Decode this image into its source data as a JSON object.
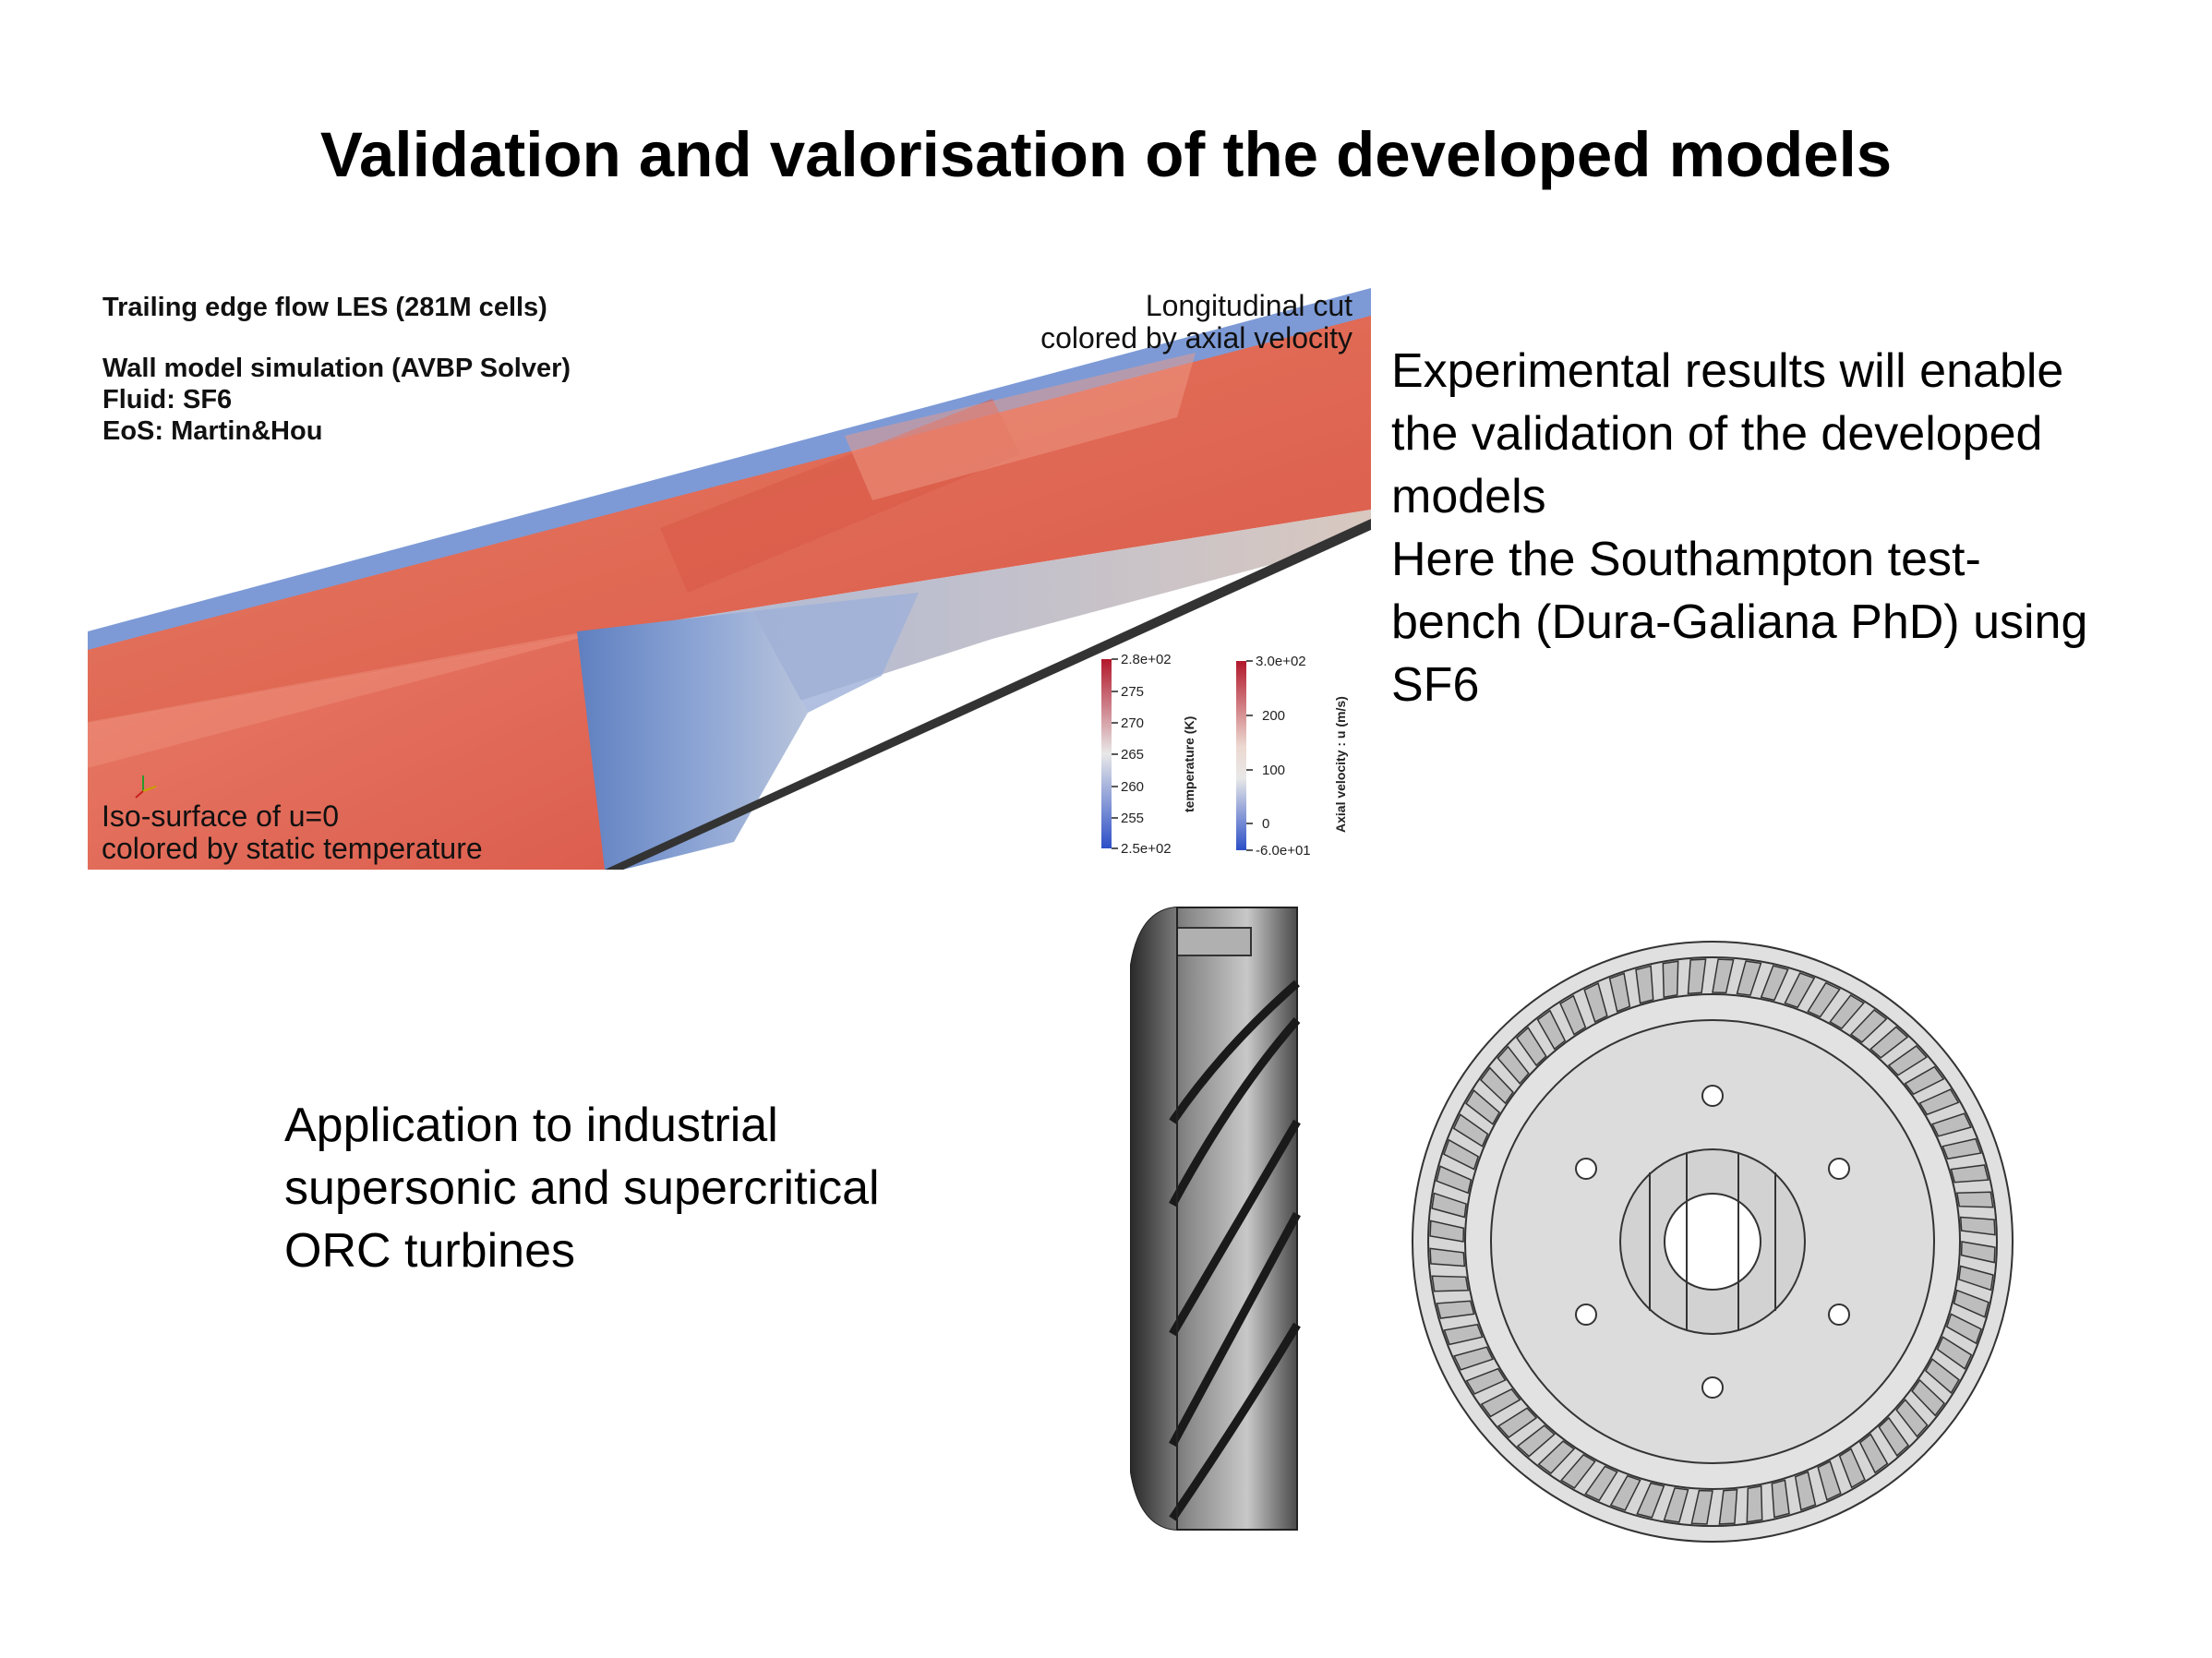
{
  "slide": {
    "title": "Validation and valorisation of the developed models"
  },
  "simulation": {
    "info": {
      "line1": "Trailing edge flow LES (281M cells)",
      "line2": "Wall model simulation (AVBP Solver)",
      "line3": "Fluid: SF6",
      "line4": "EoS: Martin&Hou"
    },
    "cut_label": {
      "line1": "Longitudinal cut",
      "line2": "colored by axial velocity"
    },
    "iso_label": {
      "line1": "Iso-surface of u=0",
      "line2": "colored by static temperature"
    },
    "temperature_colorbar": {
      "title": "temperature (K)",
      "ticks": [
        "2.8e+02",
        "275",
        "270",
        "265",
        "260",
        "255",
        "2.5e+02"
      ],
      "color_high": "#b2182b",
      "color_mid": "#e8e8e8",
      "color_low": "#2c4fc7"
    },
    "velocity_colorbar": {
      "title": "Axial velocity : u (m/s)",
      "ticks": [
        "3.0e+02",
        "200",
        "100",
        "0",
        "-6.0e+01"
      ],
      "color_high": "#b2182b",
      "color_mid": "#e8e8e8",
      "color_low": "#2c4fc7"
    }
  },
  "right_text": {
    "line1": "Experimental results will enable",
    "line2": "the validation of the developed",
    "line3": "models",
    "line4": "Here the Southampton test-",
    "line5": "bench (Dura-Galiana PhD) using",
    "line6": "SF6"
  },
  "application_text": {
    "line1": "Application to industrial",
    "line2": "supersonic and supercritical",
    "line3": "ORC turbines"
  }
}
